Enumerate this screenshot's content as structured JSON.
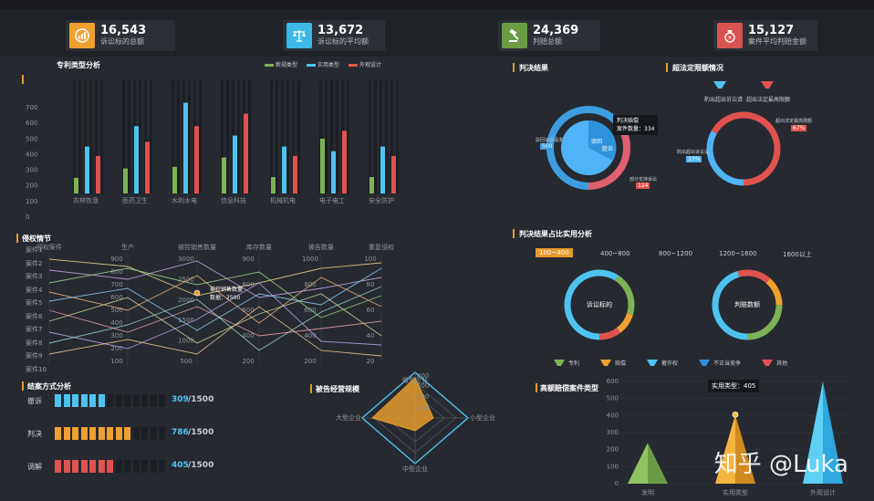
{
  "kpis": [
    {
      "value": "16,543",
      "label": "诉讼标的总额",
      "icon": "bar-chart-icon",
      "color": "#f0a030"
    },
    {
      "value": "13,672",
      "label": "诉讼标的平均额",
      "icon": "scale-icon",
      "color": "#3cb9e6"
    },
    {
      "value": "24,369",
      "label": "判赔总额",
      "icon": "gavel-icon",
      "color": "#6a9c46"
    },
    {
      "value": "15,127",
      "label": "案件平均判赔金额",
      "icon": "money-bag-icon",
      "color": "#d9534f"
    }
  ],
  "patent": {
    "title": "专利类型分析",
    "legend": [
      "新规类型",
      "实用类型",
      "外观设计"
    ],
    "colors": [
      "#7cb455",
      "#4fc3f0",
      "#e0524f"
    ],
    "chart_data": {
      "type": "bar",
      "categories": [
        "农林牧渔",
        "医药卫生",
        "水利水电",
        "信息科技",
        "机械机电",
        "电子电工",
        "安全防护"
      ],
      "series": [
        {
          "name": "新规类型",
          "values": [
            100,
            160,
            170,
            230,
            105,
            350,
            105
          ]
        },
        {
          "name": "实用类型",
          "values": [
            300,
            430,
            580,
            370,
            300,
            270,
            300
          ]
        },
        {
          "name": "外观设计",
          "values": [
            240,
            330,
            430,
            510,
            240,
            400,
            240
          ]
        }
      ],
      "ylim": [
        0,
        700
      ],
      "yticks": [
        "0",
        "100",
        "200",
        "300",
        "400",
        "500",
        "600",
        "700"
      ]
    }
  },
  "verdict": {
    "title": "判决结果",
    "inner1": "驳回",
    "inner2": "胜诉",
    "tooltip1": "判决赔偿",
    "tooltip2": "案件数量：334",
    "left_label": "驳回诉讼请求",
    "left_val": "500",
    "bottom_label": "部分支持诉讼",
    "bottom_val": "124"
  },
  "exceed": {
    "title": "超法定限额情况",
    "legend": [
      "酌出超出诉讼请",
      "超出法定最高限额"
    ],
    "right_label": "超出法定最高限额",
    "right_val": "67%",
    "left_label": "酌出超出诉讼请",
    "left_val": "33%"
  },
  "infringe": {
    "title": "侵权情节",
    "rows": [
      "案件1",
      "案件2",
      "案件3",
      "案件4",
      "案件5",
      "案件6",
      "案件7",
      "案件8",
      "案件9",
      "案件10"
    ],
    "axes": [
      "侵权案件",
      "生产",
      "被控销售数量",
      "库存数量",
      "被告数量",
      "重复侵权"
    ],
    "ticks": [
      [
        "900",
        "800",
        "700",
        "600",
        "500",
        "400",
        "300",
        "200",
        "100"
      ],
      [
        "3000",
        "2500",
        "2000",
        "1500",
        "1000",
        "500"
      ],
      [
        "900",
        "800",
        "600",
        "400",
        "200"
      ],
      [
        "1000",
        "800",
        "600",
        "400",
        "200"
      ],
      [
        "100",
        "80",
        "60",
        "40",
        "20"
      ]
    ],
    "tooltip1": "被控销售数量",
    "tooltip2": "数据：2500"
  },
  "settle": {
    "title": "结案方式分析",
    "rows": [
      {
        "label": "撤诉",
        "value": "309",
        "total": "/1500",
        "color": "#4fc3f0",
        "filled": 6
      },
      {
        "label": "判决",
        "value": "786",
        "total": "/1500",
        "color": "#f0a030",
        "filled": 9
      },
      {
        "label": "调解",
        "value": "405",
        "total": "/1500",
        "color": "#e0524f",
        "filled": 7
      }
    ]
  },
  "defendant": {
    "title": "被告经营规模",
    "labels": [
      "微型企业",
      "小型企业",
      "中型企业",
      "大型企业"
    ],
    "scale": [
      "400",
      "300",
      "200",
      "100"
    ]
  },
  "ratio": {
    "title": "判决结果占比实用分析",
    "tabs": [
      "100~400",
      "400~800",
      "800~1200",
      "1200~1600",
      "1600以上"
    ],
    "donut1": "诉讼标的",
    "donut2": "判赔数额",
    "legend": [
      "专利",
      "赔偿",
      "著作权",
      "不正当竞争",
      "其他"
    ],
    "colors": [
      "#7cb455",
      "#f0a030",
      "#4fc3f0",
      "#2f8fe0",
      "#e0524f"
    ]
  },
  "highcomp": {
    "title": "高额赔偿案件类型",
    "tooltip": "实用类型：405",
    "chart_data": {
      "type": "bar",
      "categories": [
        "发明",
        "实用类型",
        "外观设计"
      ],
      "values": [
        240,
        405,
        600
      ],
      "ylim": [
        0,
        600
      ],
      "yticks": [
        "0",
        "100",
        "200",
        "300",
        "400",
        "500",
        "600"
      ]
    }
  },
  "watermark": "知乎 @Luka"
}
